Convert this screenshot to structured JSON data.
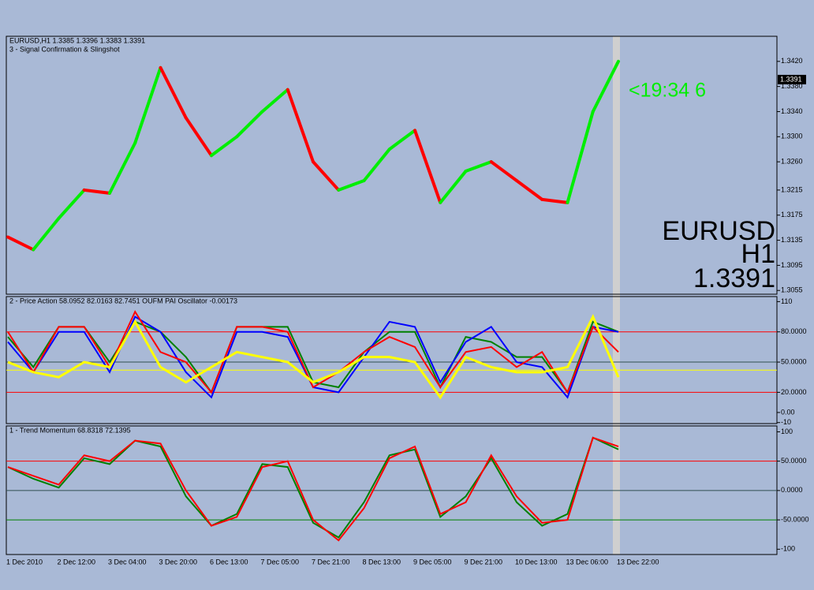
{
  "chart_data": [
    {
      "type": "line",
      "title": "EURUSD,H1  1.3385 1.3396 1.3383 1.3391",
      "subtitle": "3 - Signal Confirmation & Slingshot",
      "ylim": [
        1.3049,
        1.346
      ],
      "yticks": [
        {
          "value": 1.342,
          "label": "1.3420"
        },
        {
          "value": 1.338,
          "label": "1.3380"
        },
        {
          "value": 1.334,
          "label": "1.3340"
        },
        {
          "value": 1.33,
          "label": "1.3300"
        },
        {
          "value": 1.326,
          "label": "1.3260"
        },
        {
          "value": 1.3215,
          "label": "1.3215"
        },
        {
          "value": 1.3175,
          "label": "1.3175"
        },
        {
          "value": 1.3135,
          "label": "1.3135"
        },
        {
          "value": 1.3095,
          "label": "1.3095"
        },
        {
          "value": 1.3055,
          "label": "1.3055"
        }
      ],
      "series": [
        {
          "name": "Signal",
          "colors": [
            "#ff0000",
            "#00ee00",
            "#00ee00",
            "#ff0000",
            "#00ee00",
            "#00ee00",
            "#ff0000",
            "#ff0000",
            "#00ee00",
            "#00ee00",
            "#00ee00",
            "#ff0000",
            "#ff0000",
            "#00ee00",
            "#00ee00",
            "#00ee00",
            "#ff0000",
            "#00ee00",
            "#00ee00",
            "#ff0000",
            "#ff0000",
            "#ff0000",
            "#00ee00",
            "#00ee00",
            "#ff0000"
          ],
          "values": [
            1.314,
            1.312,
            1.317,
            1.3215,
            1.321,
            1.329,
            1.341,
            1.333,
            1.327,
            1.33,
            1.334,
            1.3375,
            1.326,
            1.3215,
            1.323,
            1.328,
            1.331,
            1.3195,
            1.3245,
            1.326,
            1.323,
            1.32,
            1.3195,
            1.334,
            1.342
          ]
        }
      ],
      "current_price": {
        "value": 1.3391,
        "label": "1.3391"
      },
      "annotations": [
        "<19:34  6",
        "EURUSD",
        "H1",
        "1.3391"
      ]
    },
    {
      "type": "line",
      "title": "2 - Price Action 58.0952 82.0163 82.7451  OUFM PAI Oscillator -0.00173",
      "ylim": [
        -11,
        115
      ],
      "yticks": [
        110,
        {
          "value": 80,
          "label": "80.0000"
        },
        {
          "value": 50,
          "label": "50.0000"
        },
        {
          "value": 20,
          "label": "20.0000"
        },
        {
          "value": 0,
          "label": "0.00"
        },
        -10
      ],
      "levels": [
        {
          "value": 80,
          "color": "#ff0000"
        },
        {
          "value": 50,
          "color": "#2f4f4f"
        },
        {
          "value": 42,
          "color": "#ffff00"
        },
        {
          "value": 20,
          "color": "#ff0000"
        }
      ],
      "series": [
        {
          "color": "#008000",
          "values": [
            75,
            45,
            85,
            85,
            50,
            90,
            80,
            55,
            20,
            85,
            85,
            85,
            30,
            25,
            60,
            80,
            80,
            25,
            75,
            70,
            55,
            55,
            20,
            90,
            80
          ]
        },
        {
          "color": "#0000ff",
          "values": [
            70,
            40,
            80,
            80,
            40,
            95,
            80,
            40,
            15,
            80,
            80,
            75,
            25,
            20,
            55,
            90,
            85,
            30,
            70,
            85,
            50,
            45,
            15,
            85,
            80
          ]
        },
        {
          "color": "#ff0000",
          "values": [
            80,
            40,
            85,
            85,
            45,
            100,
            60,
            50,
            20,
            85,
            85,
            80,
            25,
            40,
            60,
            75,
            65,
            25,
            60,
            65,
            45,
            60,
            20,
            85,
            60
          ]
        },
        {
          "color": "#ffff00",
          "values": [
            50,
            40,
            35,
            50,
            45,
            90,
            45,
            30,
            45,
            60,
            55,
            50,
            30,
            40,
            55,
            55,
            50,
            15,
            55,
            45,
            40,
            40,
            45,
            95,
            35
          ]
        }
      ]
    },
    {
      "type": "line",
      "title": "1 - Trend Momentum 68.8318 72.1395",
      "ylim": [
        -109,
        110
      ],
      "yticks": [
        100,
        {
          "value": 50,
          "label": "50.0000"
        },
        {
          "value": 0,
          "label": "0.0000"
        },
        {
          "value": -50,
          "label": "-50.0000"
        },
        -100
      ],
      "levels": [
        {
          "value": 50,
          "color": "#ff0000"
        },
        {
          "value": 0,
          "color": "#2f4f4f"
        },
        {
          "value": -50,
          "color": "#008000"
        }
      ],
      "series": [
        {
          "color": "#008000",
          "values": [
            40,
            20,
            5,
            55,
            45,
            85,
            75,
            -10,
            -60,
            -40,
            45,
            40,
            -55,
            -80,
            -20,
            60,
            70,
            -45,
            -10,
            55,
            -20,
            -60,
            -40,
            90,
            70
          ]
        },
        {
          "color": "#ff0000",
          "values": [
            40,
            25,
            10,
            60,
            50,
            85,
            80,
            0,
            -60,
            -45,
            40,
            50,
            -50,
            -85,
            -30,
            55,
            75,
            -40,
            -20,
            60,
            -10,
            -55,
            -50,
            90,
            75
          ]
        }
      ],
      "categories": [
        "1 Dec 2010",
        null,
        "2 Dec 12:00",
        null,
        "3 Dec 04:00",
        null,
        "3 Dec 20:00",
        null,
        "6 Dec 13:00",
        null,
        "7 Dec 05:00",
        null,
        "7 Dec 21:00",
        null,
        "8 Dec 13:00",
        null,
        "9 Dec 05:00",
        null,
        "9 Dec 21:00",
        null,
        "10 Dec 13:00",
        null,
        "13 Dec 06:00",
        null,
        "13 Dec 22:00"
      ]
    }
  ]
}
